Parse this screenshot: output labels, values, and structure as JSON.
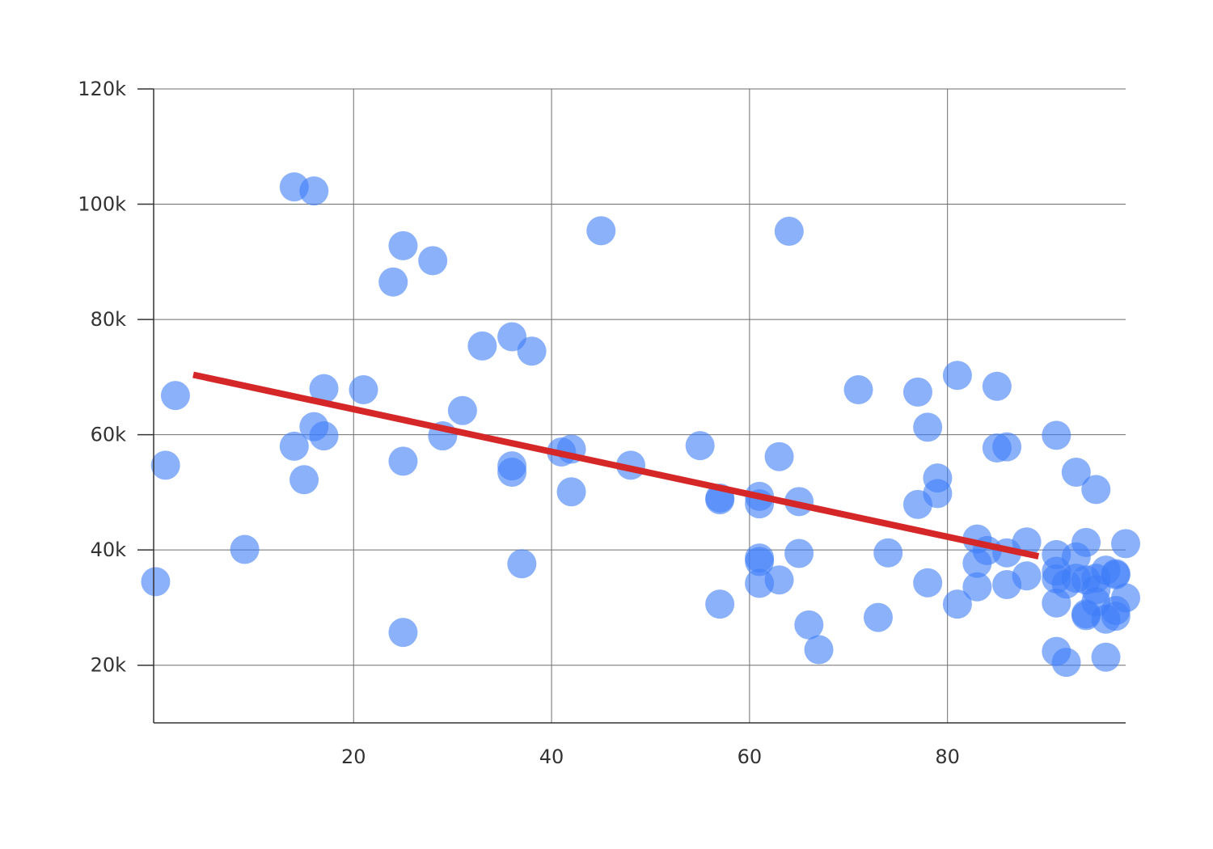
{
  "chart_data": {
    "type": "scatter",
    "title": "",
    "xlabel": "",
    "ylabel": "",
    "xlim": [
      -0.2,
      98
    ],
    "ylim": [
      10000,
      120000
    ],
    "x_ticks": [
      20,
      40,
      60,
      80
    ],
    "x_tick_labels": [
      "20",
      "40",
      "60",
      "80"
    ],
    "y_ticks": [
      20000,
      40000,
      60000,
      80000,
      100000,
      120000
    ],
    "y_tick_labels": [
      "20k",
      "40k",
      "60k",
      "80k",
      "100k",
      "120k"
    ],
    "grid": true,
    "colors": {
      "points": "#3d7df8",
      "trend": "#d62728"
    },
    "series": [
      {
        "points": [
          [
            0,
            34500
          ],
          [
            1,
            54700
          ],
          [
            2,
            66800
          ],
          [
            9,
            40100
          ],
          [
            14,
            103000
          ],
          [
            16,
            102300
          ],
          [
            14,
            58000
          ],
          [
            16,
            61400
          ],
          [
            17,
            59800
          ],
          [
            17,
            68000
          ],
          [
            15,
            52200
          ],
          [
            21,
            67800
          ],
          [
            24,
            86500
          ],
          [
            25,
            92800
          ],
          [
            28,
            90200
          ],
          [
            25,
            55400
          ],
          [
            25,
            25700
          ],
          [
            29,
            59800
          ],
          [
            31,
            64200
          ],
          [
            33,
            75400
          ],
          [
            36,
            77000
          ],
          [
            38,
            74500
          ],
          [
            36,
            54600
          ],
          [
            36,
            53500
          ],
          [
            37,
            37600
          ],
          [
            41,
            57000
          ],
          [
            42,
            57500
          ],
          [
            42,
            50100
          ],
          [
            45,
            95400
          ],
          [
            48,
            54700
          ],
          [
            55,
            58100
          ],
          [
            57,
            49000
          ],
          [
            57,
            48700
          ],
          [
            57,
            30600
          ],
          [
            61,
            49300
          ],
          [
            61,
            48000
          ],
          [
            61,
            38600
          ],
          [
            61,
            38000
          ],
          [
            61,
            34200
          ],
          [
            63,
            56200
          ],
          [
            63,
            34800
          ],
          [
            64,
            95300
          ],
          [
            65,
            48400
          ],
          [
            65,
            39400
          ],
          [
            66,
            27000
          ],
          [
            67,
            22700
          ],
          [
            71,
            67800
          ],
          [
            73,
            28300
          ],
          [
            74,
            39500
          ],
          [
            77,
            67400
          ],
          [
            78,
            61300
          ],
          [
            77,
            47900
          ],
          [
            79,
            52500
          ],
          [
            79,
            49800
          ],
          [
            78,
            34300
          ],
          [
            81,
            70300
          ],
          [
            81,
            30600
          ],
          [
            83,
            41900
          ],
          [
            83,
            37700
          ],
          [
            83,
            33600
          ],
          [
            84,
            39900
          ],
          [
            85,
            68400
          ],
          [
            85,
            57700
          ],
          [
            86,
            57900
          ],
          [
            86,
            39500
          ],
          [
            86,
            34000
          ],
          [
            88,
            41400
          ],
          [
            88,
            35500
          ],
          [
            91,
            59900
          ],
          [
            91,
            39200
          ],
          [
            91,
            36300
          ],
          [
            91,
            35000
          ],
          [
            91,
            30800
          ],
          [
            91,
            22400
          ],
          [
            92,
            34100
          ],
          [
            92,
            20500
          ],
          [
            93,
            53500
          ],
          [
            93,
            38800
          ],
          [
            93,
            35100
          ],
          [
            94,
            41300
          ],
          [
            94,
            34800
          ],
          [
            94,
            28900
          ],
          [
            94,
            28600
          ],
          [
            95,
            50500
          ],
          [
            95,
            35100
          ],
          [
            95,
            33100
          ],
          [
            95,
            31000
          ],
          [
            96,
            36500
          ],
          [
            96,
            28000
          ],
          [
            96,
            21400
          ],
          [
            97,
            35900
          ],
          [
            97,
            35700
          ],
          [
            97,
            29500
          ],
          [
            97,
            28500
          ],
          [
            98,
            41100
          ],
          [
            98,
            31700
          ]
        ]
      }
    ],
    "trend_line": {
      "x": [
        3.8,
        89.2
      ],
      "y": [
        70400,
        38900
      ]
    }
  }
}
